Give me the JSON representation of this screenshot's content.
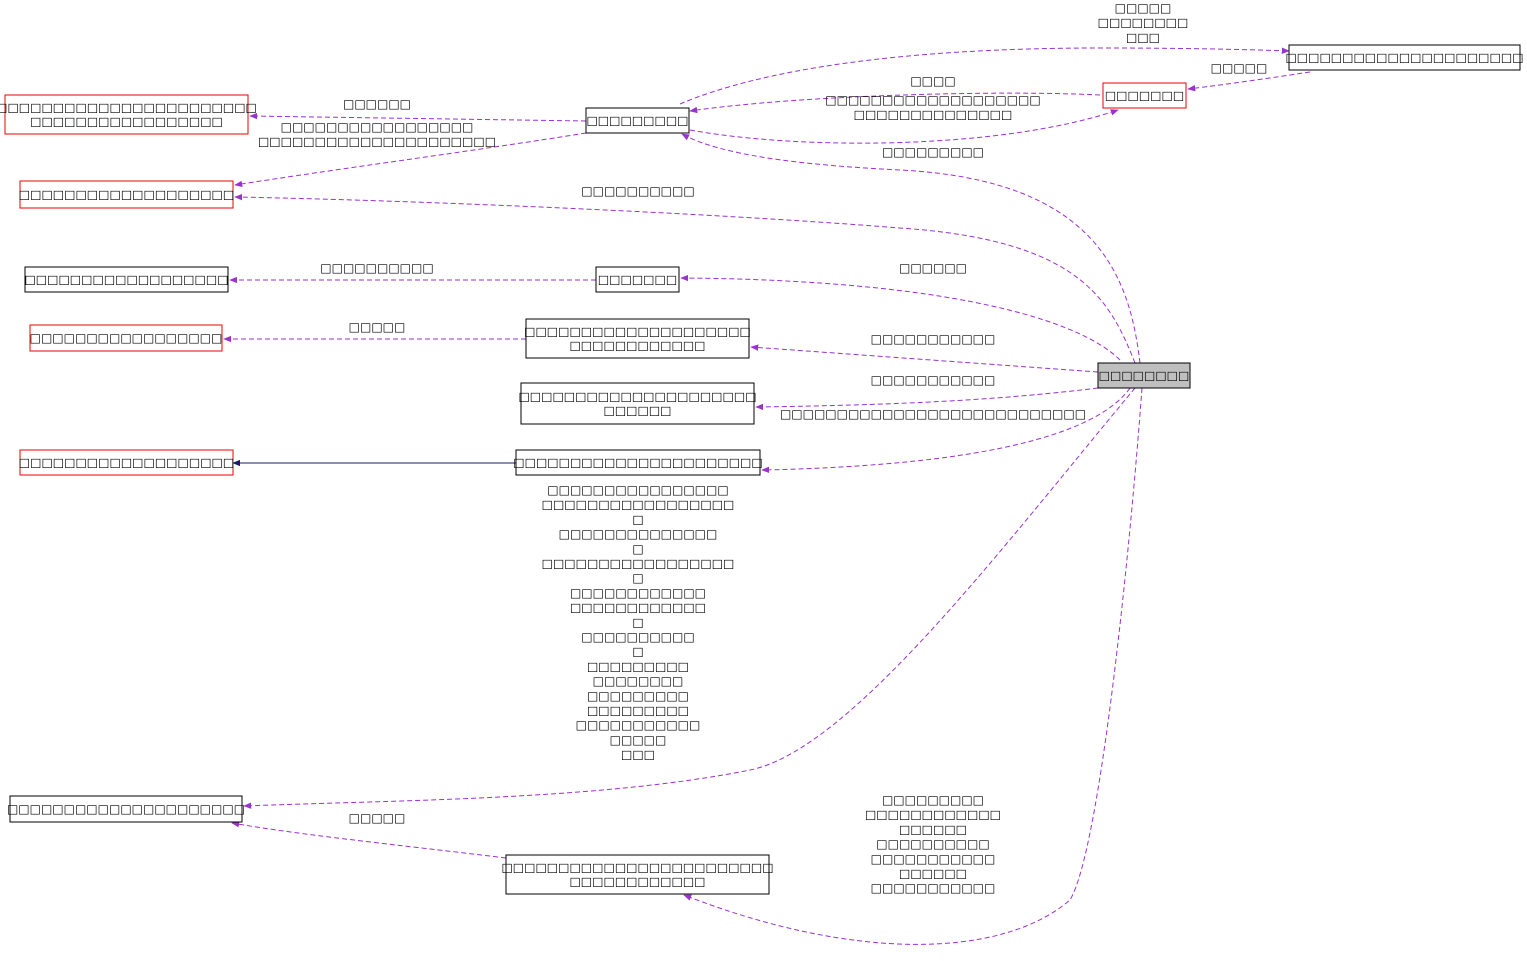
{
  "nodes": [
    {
      "lines": [
        "□□□□□□□□"
      ]
    },
    {
      "lines": [
        "□□□□□□□□□□□□□□□□□□□□□"
      ]
    },
    {
      "lines": [
        "□□□□□□□"
      ]
    },
    {
      "lines": [
        "□□□□□□□□□"
      ]
    },
    {
      "lines": [
        "□□□□□□□□□□□□□□□□□□□□□□□",
        "□□□□□□□□□□□□□□□□□"
      ]
    },
    {
      "lines": [
        "□□□□□□□□□□□□□□□□□□□"
      ]
    },
    {
      "lines": [
        "□□□□□□□□□□□□□□□□□□"
      ]
    },
    {
      "lines": [
        "□□□□□□□"
      ]
    },
    {
      "lines": [
        "□□□□□□□□□□□□□□□□□"
      ]
    },
    {
      "lines": [
        "□□□□□□□□□□□□□□□□□□□□",
        "□□□□□□□□□□□□"
      ]
    },
    {
      "lines": [
        "□□□□□□□□□□□□□□□□□□□□□",
        "□□□□□□"
      ]
    },
    {
      "lines": [
        "□□□□□□□□□□□□□□□□□□□"
      ]
    },
    {
      "lines": [
        "□□□□□□□□□□□□□□□□□□□□□□"
      ]
    },
    {
      "lines": [
        "□□□□□□□□□□□□□□□□□□□□□"
      ]
    },
    {
      "lines": [
        "□□□□□□□□□□□□□□□□□□□□□□□□",
        "□□□□□□□□□□□□"
      ]
    }
  ],
  "edges": [
    {
      "label": [
        "□□□□□",
        "□□□□□□□□",
        "□□□"
      ]
    },
    {
      "label": [
        "□□□□□"
      ]
    },
    {
      "label": [
        "□□□□"
      ]
    },
    {
      "label": [
        "□□□□□□□□□□□□□□□□□□□",
        "□□□□□□□□□□□□□□"
      ]
    },
    {
      "label": [
        "□□□□□□□□□"
      ]
    },
    {
      "label": [
        "□□□□□□"
      ]
    },
    {
      "label": [
        "□□□□□□□□□□□□□□□□□",
        "□□□□□□□□□□□□□□□□□□□□□"
      ]
    },
    {
      "label": [
        "□□□□□□□□□□"
      ]
    },
    {
      "label": [
        "□□□□□□□□□□"
      ]
    },
    {
      "label": [
        "□□□□□□"
      ]
    },
    {
      "label": [
        "□□□□□"
      ]
    },
    {
      "label": [
        "□□□□□□□□□□□"
      ]
    },
    {
      "label": [
        "□□□□□□□□□□□"
      ]
    },
    {
      "label": [
        "□□□□□□□□□□□□□□□□□□□□□□□□□□□"
      ]
    },
    {
      "label": []
    },
    {
      "label": [
        "□□□□□□□□□□□□□□□□",
        "□□□□□□□□□□□□□□□□□",
        "□",
        "□□□□□□□□□□□□□□",
        "□",
        "□□□□□□□□□□□□□□□□□",
        "□",
        "□□□□□□□□□□□□",
        "□□□□□□□□□□□□",
        "□",
        "□□□□□□□□□□",
        "□",
        "□□□□□□□□□",
        "□□□□□□□□",
        "□□□□□□□□□",
        "□□□□□□□□□",
        "□□□□□□□□□□□",
        "□□□□□",
        "□□□"
      ]
    },
    {
      "label": [
        "□□□□□"
      ]
    },
    {
      "label": [
        "□□□□□□□□□",
        "□□□□□□□□□□□□",
        "□□□□□□",
        "□□□□□□□□□□",
        "□□□□□□□□□□□",
        "□□□□□□",
        "□□□□□□□□□□□"
      ]
    }
  ]
}
